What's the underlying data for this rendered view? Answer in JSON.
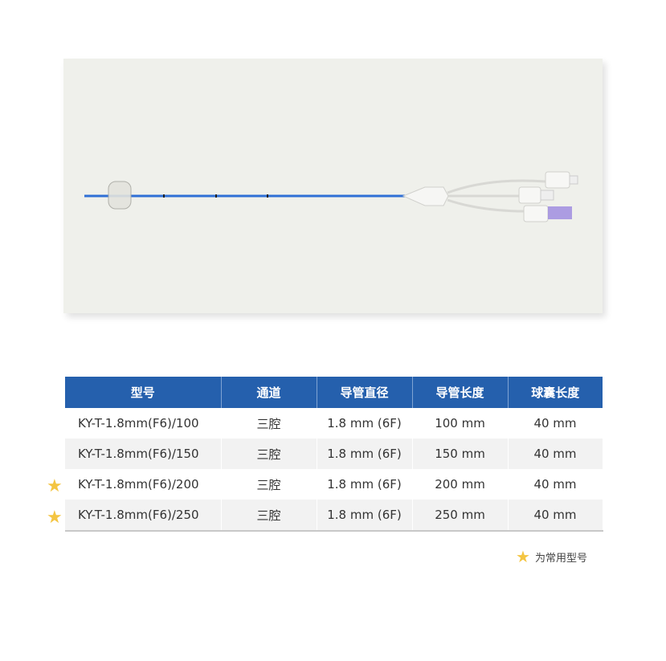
{
  "table": {
    "headers": [
      "型号",
      "通道",
      "导管直径",
      "导管长度",
      "球囊长度"
    ],
    "rows": [
      {
        "model": "KY-T-1.8mm(F6)/100",
        "channel": "三腔",
        "diameter": "1.8 mm (6F)",
        "length": "100 mm",
        "balloon": "40 mm",
        "starred": false
      },
      {
        "model": "KY-T-1.8mm(F6)/150",
        "channel": "三腔",
        "diameter": "1.8 mm (6F)",
        "length": "150 mm",
        "balloon": "40 mm",
        "starred": false
      },
      {
        "model": "KY-T-1.8mm(F6)/200",
        "channel": "三腔",
        "diameter": "1.8 mm (6F)",
        "length": "200 mm",
        "balloon": "40 mm",
        "starred": true
      },
      {
        "model": "KY-T-1.8mm(F6)/250",
        "channel": "三腔",
        "diameter": "1.8 mm (6F)",
        "length": "250 mm",
        "balloon": "40 mm",
        "starred": true
      }
    ]
  },
  "legend": {
    "icon": "star-icon",
    "label": "为常用型号"
  },
  "colors": {
    "header": "#2560ad",
    "star": "#f4c542",
    "catheter": "#2f6fd6"
  }
}
